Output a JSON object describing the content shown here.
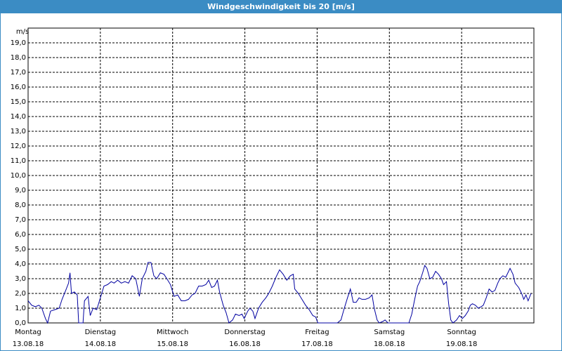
{
  "chart_data": {
    "type": "line",
    "title": "Windgeschwindigkeit bis 20 [m/s]",
    "y_unit": "m/s",
    "xlim": [
      0,
      7
    ],
    "xticks": [
      {
        "value": 0,
        "label": "Montag",
        "date": "13.08.18"
      },
      {
        "value": 1,
        "label": "Dienstag",
        "date": "14.08.18"
      },
      {
        "value": 2,
        "label": "Mittwoch",
        "date": "15.08.18"
      },
      {
        "value": 3,
        "label": "Donnerstag",
        "date": "16.08.18"
      },
      {
        "value": 4,
        "label": "Freitag",
        "date": "17.08.18"
      },
      {
        "value": 5,
        "label": "Samstag",
        "date": "18.08.18"
      },
      {
        "value": 6,
        "label": "Sonntag",
        "date": "19.08.18"
      }
    ],
    "ylim": [
      0,
      20
    ],
    "yticks": [
      {
        "value": 0,
        "label": "0,0"
      },
      {
        "value": 1,
        "label": "1,0"
      },
      {
        "value": 2,
        "label": "2,0"
      },
      {
        "value": 3,
        "label": "3,0"
      },
      {
        "value": 4,
        "label": "4,0"
      },
      {
        "value": 5,
        "label": "5,0"
      },
      {
        "value": 6,
        "label": "6,0"
      },
      {
        "value": 7,
        "label": "7,0"
      },
      {
        "value": 8,
        "label": "8,0"
      },
      {
        "value": 9,
        "label": "9,0"
      },
      {
        "value": 10,
        "label": "10,0"
      },
      {
        "value": 11,
        "label": "11,0"
      },
      {
        "value": 12,
        "label": "12,0"
      },
      {
        "value": 13,
        "label": "13,0"
      },
      {
        "value": 14,
        "label": "14,0"
      },
      {
        "value": 15,
        "label": "15,0"
      },
      {
        "value": 16,
        "label": "16,0"
      },
      {
        "value": 17,
        "label": "17,0"
      },
      {
        "value": 18,
        "label": "18,0"
      },
      {
        "value": 19,
        "label": "19,0"
      }
    ],
    "grid": true,
    "x": [
      0,
      0.05,
      0.1,
      0.15,
      0.19,
      0.24,
      0.27,
      0.31,
      0.37,
      0.43,
      0.47,
      0.52,
      0.56,
      0.58,
      0.6,
      0.64,
      0.68,
      0.7,
      0.76,
      0.78,
      0.83,
      0.86,
      0.9,
      0.95,
      1.0,
      1.05,
      1.1,
      1.15,
      1.19,
      1.24,
      1.29,
      1.34,
      1.39,
      1.44,
      1.49,
      1.54,
      1.58,
      1.63,
      1.66,
      1.7,
      1.74,
      1.78,
      1.83,
      1.88,
      1.92,
      1.97,
      2.02,
      2.07,
      2.12,
      2.17,
      2.22,
      2.27,
      2.31,
      2.36,
      2.41,
      2.46,
      2.5,
      2.54,
      2.58,
      2.62,
      2.65,
      2.7,
      2.74,
      2.78,
      2.83,
      2.87,
      2.92,
      2.96,
      2.99,
      3.04,
      3.07,
      3.11,
      3.14,
      3.19,
      3.24,
      3.29,
      3.33,
      3.38,
      3.43,
      3.48,
      3.53,
      3.58,
      3.63,
      3.67,
      3.69,
      3.74,
      3.79,
      3.84,
      3.89,
      3.94,
      3.98,
      4.01,
      4.08,
      4.18,
      4.28,
      4.33,
      4.37,
      4.42,
      4.46,
      4.5,
      4.54,
      4.58,
      4.62,
      4.67,
      4.72,
      4.76,
      4.79,
      4.83,
      4.86,
      4.91,
      4.94,
      4.98,
      5.02,
      5.1,
      5.2,
      5.27,
      5.31,
      5.35,
      5.39,
      5.42,
      5.46,
      5.49,
      5.52,
      5.56,
      5.6,
      5.64,
      5.68,
      5.72,
      5.75,
      5.79,
      5.82,
      5.85,
      5.88,
      5.93,
      5.97,
      6.01,
      6.05,
      6.09,
      6.12,
      6.15,
      6.19,
      6.23,
      6.27,
      6.3,
      6.34,
      6.38,
      6.42,
      6.46,
      6.5,
      6.53,
      6.57,
      6.61,
      6.65,
      6.67,
      6.71,
      6.74,
      6.79,
      6.83,
      6.86,
      6.89,
      6.92,
      6.96
    ],
    "series": [
      {
        "color": "#0000a0",
        "values": [
          1.5,
          1.2,
          1.1,
          1.2,
          1.0,
          0.3,
          0,
          0.8,
          0.9,
          1.0,
          1.6,
          2.2,
          2.7,
          3.4,
          2.0,
          2.1,
          1.9,
          0,
          0,
          1.5,
          1.8,
          0.5,
          1.0,
          0.9,
          1.7,
          2.5,
          2.6,
          2.8,
          2.7,
          2.9,
          2.7,
          2.8,
          2.7,
          3.2,
          3.0,
          1.8,
          3.0,
          3.5,
          4.1,
          4.1,
          3.2,
          3.0,
          3.4,
          3.3,
          3.0,
          2.6,
          1.8,
          1.9,
          1.5,
          1.5,
          1.6,
          1.9,
          2.0,
          2.5,
          2.5,
          2.6,
          2.9,
          2.4,
          2.5,
          2.9,
          2.1,
          1.2,
          0.7,
          0,
          0.2,
          0.6,
          0.5,
          0.6,
          0.3,
          0.8,
          1.0,
          0.8,
          0.3,
          1.0,
          1.4,
          1.7,
          2.0,
          2.5,
          3.1,
          3.6,
          3.3,
          2.9,
          3.2,
          3.3,
          2.3,
          2.0,
          1.6,
          1.2,
          0.9,
          0.5,
          0.4,
          0,
          0,
          0,
          0,
          0.2,
          0.9,
          1.7,
          2.3,
          1.4,
          1.4,
          1.7,
          1.6,
          1.6,
          1.7,
          1.9,
          1.0,
          0.2,
          0,
          0.1,
          0.2,
          0,
          0,
          0,
          0,
          0,
          0.6,
          1.6,
          2.5,
          2.8,
          3.4,
          3.9,
          3.7,
          3.0,
          3.1,
          3.5,
          3.3,
          3.0,
          2.6,
          2.8,
          1.3,
          0.2,
          0,
          0.2,
          0.5,
          0.3,
          0.5,
          0.8,
          1.2,
          1.3,
          1.2,
          1.0,
          1.1,
          1.2,
          1.7,
          2.3,
          2.1,
          2.2,
          2.7,
          3.0,
          3.2,
          3.1,
          3.5,
          3.7,
          3.3,
          2.7,
          2.4,
          2.0,
          1.6,
          1.9,
          1.5,
          2.0
        ]
      }
    ]
  }
}
